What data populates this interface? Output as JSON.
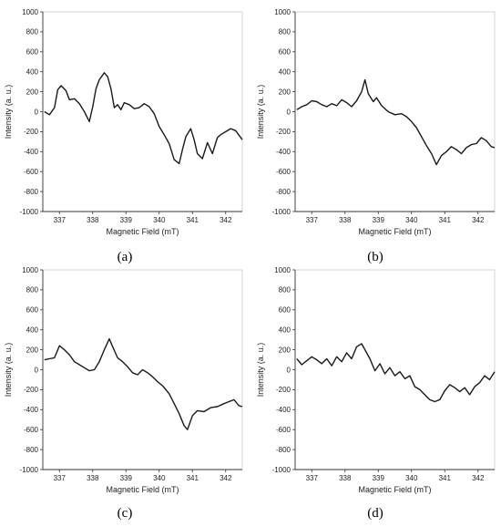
{
  "figure": {
    "panels": [
      "a",
      "b",
      "c",
      "d"
    ],
    "panel_labels": [
      "(a)",
      "(b)",
      "(c)",
      "(d)"
    ]
  },
  "chart_data": [
    {
      "type": "line",
      "panel": "(a)",
      "xlabel": "Magnetic Field (mT)",
      "ylabel": "Intensity (a. u.)",
      "xlim": [
        336.5,
        342.5
      ],
      "ylim": [
        -1000,
        1000
      ],
      "xticks": [
        337,
        338,
        339,
        340,
        341,
        342
      ],
      "yticks": [
        -1000,
        -800,
        -600,
        -400,
        -200,
        0,
        200,
        400,
        600,
        800,
        1000
      ],
      "grid": false,
      "color": "#1a1a1a",
      "x": [
        336.55,
        336.7,
        336.85,
        336.95,
        337.05,
        337.2,
        337.3,
        337.45,
        337.6,
        337.75,
        337.9,
        338.0,
        338.1,
        338.2,
        338.35,
        338.45,
        338.55,
        338.65,
        338.75,
        338.85,
        338.95,
        339.1,
        339.25,
        339.4,
        339.55,
        339.7,
        339.85,
        340.0,
        340.15,
        340.3,
        340.45,
        340.6,
        340.7,
        340.8,
        340.95,
        341.05,
        341.15,
        341.3,
        341.45,
        341.6,
        341.75,
        341.85,
        342.0,
        342.15,
        342.3,
        342.5
      ],
      "y": [
        0,
        -30,
        40,
        220,
        260,
        210,
        120,
        130,
        80,
        0,
        -100,
        50,
        230,
        320,
        390,
        350,
        230,
        40,
        70,
        20,
        90,
        70,
        30,
        40,
        80,
        50,
        -20,
        -150,
        -230,
        -320,
        -480,
        -520,
        -380,
        -250,
        -170,
        -280,
        -420,
        -470,
        -310,
        -420,
        -260,
        -230,
        -200,
        -170,
        -190,
        -280
      ]
    },
    {
      "type": "line",
      "panel": "(b)",
      "xlabel": "Magnetic Field (mT)",
      "ylabel": "Intensity (a. u.)",
      "xlim": [
        336.5,
        342.5
      ],
      "ylim": [
        -1000,
        1000
      ],
      "xticks": [
        337,
        338,
        339,
        340,
        341,
        342
      ],
      "yticks": [
        -1000,
        -800,
        -600,
        -400,
        -200,
        0,
        200,
        400,
        600,
        800,
        1000
      ],
      "grid": false,
      "color": "#1a1a1a",
      "x": [
        336.55,
        336.7,
        336.85,
        337.0,
        337.15,
        337.3,
        337.45,
        337.6,
        337.75,
        337.9,
        338.05,
        338.2,
        338.35,
        338.5,
        338.6,
        338.7,
        338.85,
        338.95,
        339.1,
        339.3,
        339.5,
        339.7,
        339.85,
        340.0,
        340.15,
        340.3,
        340.45,
        340.6,
        340.75,
        340.9,
        341.05,
        341.2,
        341.35,
        341.5,
        341.65,
        341.8,
        341.95,
        342.1,
        342.25,
        342.4,
        342.5
      ],
      "y": [
        20,
        50,
        70,
        110,
        100,
        70,
        50,
        80,
        60,
        120,
        90,
        50,
        110,
        200,
        320,
        180,
        100,
        140,
        60,
        0,
        -30,
        -20,
        -50,
        -100,
        -160,
        -250,
        -340,
        -420,
        -530,
        -440,
        -400,
        -350,
        -380,
        -420,
        -360,
        -330,
        -320,
        -260,
        -290,
        -350,
        -360
      ]
    },
    {
      "type": "line",
      "panel": "(c)",
      "xlabel": "Magnetic Field (mT)",
      "ylabel": "Intensity (a. u.)",
      "xlim": [
        336.5,
        342.5
      ],
      "ylim": [
        -1000,
        1000
      ],
      "xticks": [
        337,
        338,
        339,
        340,
        341,
        342
      ],
      "yticks": [
        -1000,
        -800,
        -600,
        -400,
        -200,
        0,
        200,
        400,
        600,
        800,
        1000
      ],
      "grid": false,
      "color": "#1a1a1a",
      "x": [
        336.55,
        336.7,
        336.85,
        337.0,
        337.15,
        337.3,
        337.45,
        337.6,
        337.75,
        337.9,
        338.05,
        338.2,
        338.35,
        338.5,
        338.6,
        338.75,
        338.9,
        339.05,
        339.2,
        339.35,
        339.5,
        339.65,
        339.8,
        339.95,
        340.1,
        340.3,
        340.45,
        340.6,
        340.75,
        340.85,
        341.0,
        341.15,
        341.35,
        341.55,
        341.75,
        341.95,
        342.1,
        342.25,
        342.4,
        342.5
      ],
      "y": [
        100,
        110,
        120,
        240,
        200,
        150,
        80,
        50,
        20,
        -10,
        0,
        80,
        200,
        310,
        230,
        120,
        80,
        30,
        -30,
        -50,
        0,
        -30,
        -70,
        -120,
        -160,
        -240,
        -340,
        -440,
        -560,
        -600,
        -460,
        -410,
        -420,
        -380,
        -370,
        -340,
        -320,
        -300,
        -360,
        -370
      ]
    },
    {
      "type": "line",
      "panel": "(d)",
      "xlabel": "Magnetic Field (mT)",
      "ylabel": "Intensity (a. u.)",
      "xlim": [
        336.5,
        342.5
      ],
      "ylim": [
        -1000,
        1000
      ],
      "xticks": [
        337,
        338,
        339,
        340,
        341,
        342
      ],
      "yticks": [
        -1000,
        -800,
        -600,
        -400,
        -200,
        0,
        200,
        400,
        600,
        800,
        1000
      ],
      "grid": false,
      "color": "#1a1a1a",
      "x": [
        336.55,
        336.7,
        336.85,
        337.0,
        337.15,
        337.3,
        337.45,
        337.6,
        337.75,
        337.9,
        338.05,
        338.2,
        338.35,
        338.5,
        338.6,
        338.75,
        338.9,
        339.05,
        339.2,
        339.35,
        339.5,
        339.65,
        339.8,
        339.95,
        340.1,
        340.25,
        340.4,
        340.55,
        340.7,
        340.85,
        341.0,
        341.15,
        341.3,
        341.45,
        341.6,
        341.75,
        341.9,
        342.05,
        342.2,
        342.35,
        342.5
      ],
      "y": [
        110,
        50,
        90,
        130,
        100,
        60,
        110,
        40,
        130,
        80,
        170,
        110,
        230,
        260,
        200,
        110,
        -10,
        60,
        -40,
        20,
        -60,
        -20,
        -90,
        -60,
        -170,
        -200,
        -250,
        -300,
        -320,
        -300,
        -210,
        -150,
        -180,
        -220,
        -180,
        -250,
        -170,
        -130,
        -60,
        -100,
        -20
      ]
    }
  ]
}
